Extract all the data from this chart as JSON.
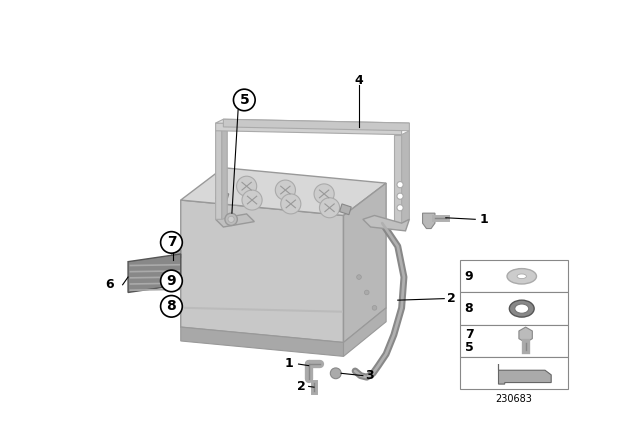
{
  "bg_color": "#ffffff",
  "part_number": "230683",
  "battery_color_front": "#c8c8c8",
  "battery_color_top": "#d4d4d4",
  "battery_color_right": "#b8b8b8",
  "battery_color_bottom": "#a0a0a0",
  "bracket_color": "#c0c0c0",
  "pad_color": "#888888",
  "label_fontsize": 9,
  "circle_label_fontsize": 10,
  "part_number_fontsize": 7
}
